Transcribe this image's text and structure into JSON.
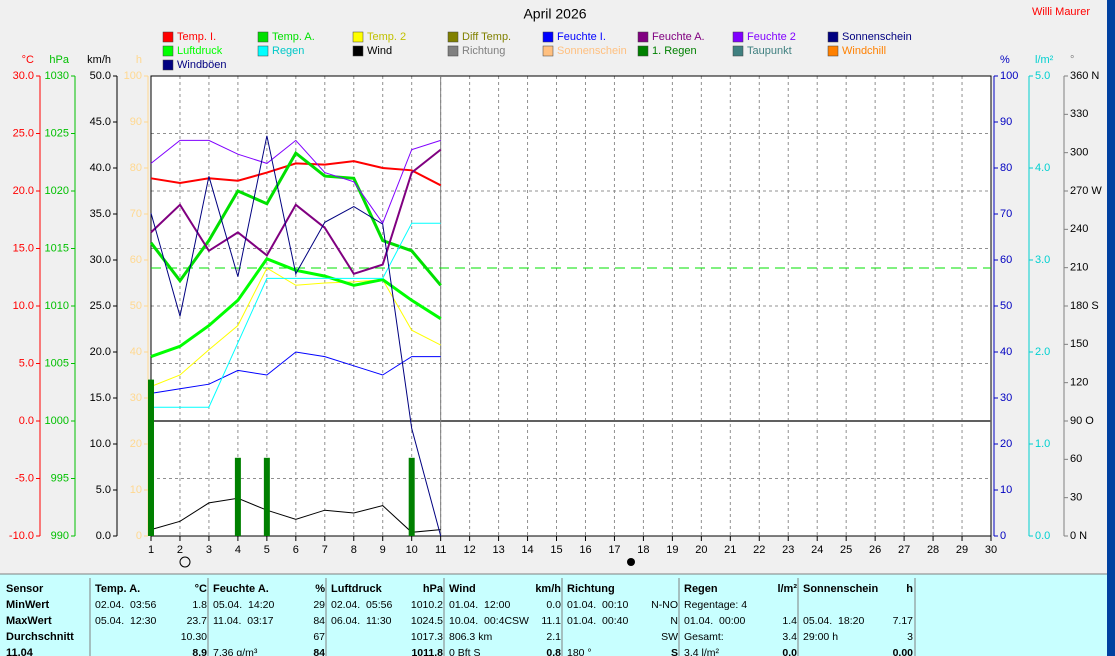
{
  "title": "April 2026",
  "author": "Willi Maurer",
  "chart_data": {
    "type": "line",
    "x": [
      1,
      2,
      3,
      4,
      5,
      6,
      7,
      8,
      9,
      10,
      11
    ],
    "xlim": [
      1,
      30
    ],
    "xticks": [
      1,
      2,
      3,
      4,
      5,
      6,
      7,
      8,
      9,
      10,
      11,
      12,
      13,
      14,
      15,
      16,
      17,
      18,
      19,
      20,
      21,
      22,
      23,
      24,
      25,
      26,
      27,
      28,
      29,
      30
    ],
    "grid": true,
    "axes": [
      {
        "name": "°C",
        "color": "#ff0000",
        "lim": [
          -10,
          30
        ],
        "ticks": [
          {
            "value": -10,
            "label": "-10.0"
          },
          {
            "value": -5,
            "label": "-5.0"
          },
          {
            "value": 0,
            "label": "0.0"
          },
          {
            "value": 5,
            "label": "5.0"
          },
          {
            "value": 10,
            "label": "10.0"
          },
          {
            "value": 15,
            "label": "15.0"
          },
          {
            "value": 20,
            "label": "20.0"
          },
          {
            "value": 25,
            "label": "25.0"
          },
          {
            "value": 30,
            "label": "30.0"
          }
        ]
      },
      {
        "name": "hPa",
        "color": "#00c000",
        "lim": [
          990,
          1030
        ],
        "ticks": [
          990,
          995,
          1000,
          1005,
          1010,
          1015,
          1020,
          1025,
          1030
        ]
      },
      {
        "name": "km/h",
        "color": "#000000",
        "lim": [
          0,
          50
        ],
        "ticks": [
          {
            "value": 0,
            "label": "0.0"
          },
          {
            "value": 5,
            "label": "5.0"
          },
          {
            "value": 10,
            "label": "10.0"
          },
          {
            "value": 15,
            "label": "15.0"
          },
          {
            "value": 20,
            "label": "20.0"
          },
          {
            "value": 25,
            "label": "25.0"
          },
          {
            "value": 30,
            "label": "30.0"
          },
          {
            "value": 35,
            "label": "35.0"
          },
          {
            "value": 40,
            "label": "40.0"
          },
          {
            "value": 45,
            "label": "45.0"
          },
          {
            "value": 50,
            "label": "50.0"
          }
        ]
      },
      {
        "name": "h",
        "color": "#ffd890",
        "lim": [
          0,
          100
        ],
        "ticks": [
          0,
          10,
          20,
          30,
          40,
          50,
          60,
          70,
          80,
          90,
          100
        ]
      },
      {
        "name": "%",
        "color": "#0000c0",
        "lim": [
          0,
          100
        ],
        "ticks": [
          0,
          10,
          20,
          30,
          40,
          50,
          60,
          70,
          80,
          90,
          100
        ]
      },
      {
        "name": "l/m²",
        "color": "#00d0d0",
        "lim": [
          0,
          5
        ],
        "ticks": [
          {
            "value": 0,
            "label": "0.0"
          },
          {
            "value": 1,
            "label": "1.0"
          },
          {
            "value": 2,
            "label": "2.0"
          },
          {
            "value": 3,
            "label": "3.0"
          },
          {
            "value": 4,
            "label": "4.0"
          },
          {
            "value": 5,
            "label": "5.0"
          }
        ]
      },
      {
        "name": "°",
        "color": "#808080",
        "lim": [
          0,
          360
        ],
        "ticks": [
          {
            "value": 0,
            "label": "0 N"
          },
          30,
          60,
          {
            "value": 90,
            "label": "90 O"
          },
          120,
          150,
          {
            "value": 180,
            "label": "180 S"
          },
          210,
          240,
          {
            "value": 270,
            "label": "270 W"
          },
          300,
          330,
          {
            "value": 360,
            "label": "360 N"
          }
        ]
      }
    ],
    "series": [
      {
        "name": "Temp. I.",
        "color": "#ff0000",
        "axis": 0,
        "width": 2,
        "values": [
          21.1,
          20.7,
          21.1,
          20.9,
          21.6,
          22.4,
          22.3,
          22.6,
          22.0,
          21.8,
          20.5
        ]
      },
      {
        "name": "Temp. A.",
        "color": "#00e000",
        "axis": 0,
        "width": 3,
        "values": [
          15.5,
          12.2,
          15.7,
          20.0,
          18.9,
          23.3,
          21.3,
          21.1,
          15.7,
          14.8,
          11.8
        ]
      },
      {
        "name": "Temp. 2",
        "color": "#ffff00",
        "axis": 0,
        "width": 1,
        "values": [
          3.0,
          4.0,
          6.2,
          8.3,
          13.3,
          11.8,
          12.0,
          12.1,
          12.3,
          7.9,
          6.6
        ]
      },
      {
        "name": "Diff Temp.",
        "color": "#808000"
      },
      {
        "name": "Feuchte I.",
        "color": "#0000ff",
        "axis": 4,
        "width": 1,
        "values": [
          31,
          32,
          33,
          36,
          35,
          40,
          39,
          37,
          35,
          39,
          39
        ]
      },
      {
        "name": "Feuchte A.",
        "color": "#800080",
        "axis": 4,
        "width": 2,
        "values": [
          66,
          72,
          62,
          66,
          61,
          72,
          67,
          57,
          59,
          79,
          84
        ]
      },
      {
        "name": "Feuchte 2",
        "color": "#8000ff",
        "axis": 4,
        "width": 1,
        "values": [
          81,
          86,
          86,
          83,
          81,
          86,
          79,
          77,
          68,
          84,
          86
        ]
      },
      {
        "name": "Sonnenschein",
        "color": "#000080"
      },
      {
        "name": "Luftdruck",
        "color": "#00ff00",
        "axis": 1,
        "width": 3,
        "values": [
          1005.6,
          1006.5,
          1008.3,
          1010.5,
          1014.1,
          1013.1,
          1012.6,
          1011.8,
          1012.3,
          1010.5,
          1008.9
        ]
      },
      {
        "name": "Regen",
        "color": "#00ffff",
        "axis": 5,
        "width": 1,
        "values": [
          1.4,
          1.4,
          1.4,
          2.1,
          2.8,
          2.8,
          2.8,
          2.8,
          2.8,
          3.4,
          3.4
        ]
      },
      {
        "name": "Wind",
        "color": "#000000",
        "axis": 2,
        "width": 1,
        "values": [
          0.7,
          1.6,
          3.6,
          4.1,
          2.8,
          1.8,
          2.8,
          2.5,
          3.3,
          0.4,
          0.7
        ]
      },
      {
        "name": "Richtung",
        "color": "#808080"
      },
      {
        "name": "Sonnenschein",
        "color": "#ffc080"
      },
      {
        "name": "1. Regen",
        "color": "#008000",
        "axis": 5,
        "type": "bar",
        "values": [
          1.7,
          0,
          0,
          0.85,
          0.85,
          0,
          0,
          0,
          0,
          0.85,
          0
        ]
      },
      {
        "name": "Taupunkt",
        "color": "#408080"
      },
      {
        "name": "Windchill",
        "color": "#ff8000"
      },
      {
        "name": "Windböen",
        "color": "#000080",
        "axis": 2,
        "width": 1,
        "values": [
          35.1,
          23.9,
          39.1,
          28.2,
          43.5,
          28.5,
          34.1,
          35.8,
          33.9,
          11.7,
          0
        ]
      }
    ],
    "hlines": [
      {
        "axis": 1,
        "value": 1013.3,
        "color": "#00e000"
      }
    ]
  },
  "table": {
    "columns": [
      {
        "name": "Sensor"
      },
      {
        "name": "Temp. A.",
        "unit": "°C"
      },
      {
        "name": "Feuchte A.",
        "unit": "%"
      },
      {
        "name": "Luftdruck",
        "unit": "hPa"
      },
      {
        "name": "Wind",
        "unit": "km/h"
      },
      {
        "name": "Richtung"
      },
      {
        "name": "Regen",
        "unit": "l/m²"
      },
      {
        "name": "Sonnenschein",
        "unit": "h"
      }
    ],
    "rows": [
      {
        "label": "MinWert",
        "cells": [
          {
            "l": "02.04.  03:56",
            "r": "1.8"
          },
          {
            "l": "05.04.  14:20",
            "r": "29"
          },
          {
            "l": "02.04.  05:56",
            "r": "1010.2"
          },
          {
            "l": "01.04.  12:00",
            "r": "0.0"
          },
          {
            "l": "01.04.  00:10",
            "r": "N-NO"
          },
          {
            "l": "Regentage: 4"
          },
          {}
        ]
      },
      {
        "label": "MaxWert",
        "cells": [
          {
            "l": "05.04.  12:30",
            "r": "23.7"
          },
          {
            "l": "11.04.  03:17",
            "r": "84"
          },
          {
            "l": "06.04.  11:30",
            "r": "1024.5"
          },
          {
            "l": "10.04.  00:4CSW",
            "r": "11.1"
          },
          {
            "l": "01.04.  00:40",
            "r": "N"
          },
          {
            "l": "01.04.  00:00",
            "r": "1.4"
          },
          {
            "l": "05.04.  18:20",
            "r": "7.17"
          }
        ]
      },
      {
        "label": "Durchschnitt",
        "cells": [
          {
            "r": "10.30"
          },
          {
            "r": "67"
          },
          {
            "r": "1017.3"
          },
          {
            "l": "806.3 km",
            "r": "2.1"
          },
          {
            "r": "SW"
          },
          {
            "l": "Gesamt:",
            "r": "3.4"
          },
          {
            "l": "29:00 h",
            "r": "3"
          }
        ]
      },
      {
        "label": "11.04",
        "cells": [
          {
            "r": "8.9"
          },
          {
            "l": "7.36 g/m³",
            "r": "84"
          },
          {
            "r": "1011.8"
          },
          {
            "l": "0 Bft S",
            "r": "0.8"
          },
          {
            "l": "180 °",
            "r": "S"
          },
          {
            "l": "3.4 l/m²",
            "r": "0.0"
          },
          {
            "r": "0.00"
          }
        ]
      }
    ]
  }
}
